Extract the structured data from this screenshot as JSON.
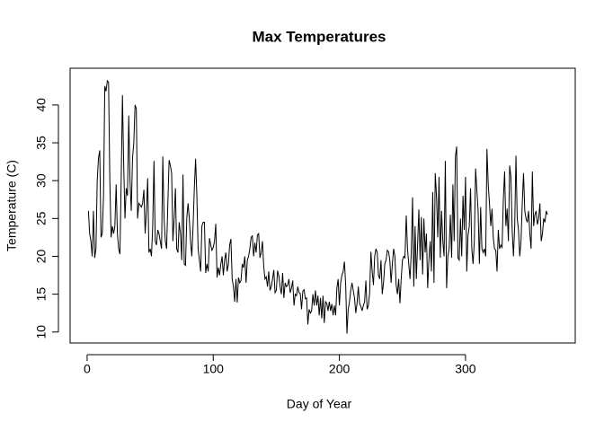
{
  "chart_data": {
    "type": "line",
    "title": "Max Temperatures",
    "xlabel": "Day of Year",
    "ylabel": "Temperature (C)",
    "color": "#000000",
    "xlim": [
      -13.5,
      387
    ],
    "ylim": [
      8.55,
      44.85
    ],
    "xticks": [
      0,
      100,
      200,
      300
    ],
    "yticks": [
      10,
      15,
      20,
      25,
      30,
      35,
      40
    ],
    "x": [
      1,
      2,
      3,
      4,
      5,
      6,
      7,
      8,
      9,
      10,
      11,
      12,
      13,
      14,
      15,
      16,
      17,
      18,
      19,
      20,
      21,
      22,
      23,
      24,
      25,
      26,
      27,
      28,
      29,
      30,
      31,
      32,
      33,
      34,
      35,
      36,
      37,
      38,
      39,
      40,
      41,
      42,
      43,
      44,
      45,
      46,
      47,
      48,
      49,
      50,
      51,
      52,
      53,
      54,
      55,
      56,
      57,
      58,
      59,
      60,
      61,
      62,
      63,
      64,
      65,
      66,
      67,
      68,
      69,
      70,
      71,
      72,
      73,
      74,
      75,
      76,
      77,
      78,
      79,
      80,
      81,
      82,
      83,
      84,
      85,
      86,
      87,
      88,
      89,
      90,
      91,
      92,
      93,
      94,
      95,
      96,
      97,
      98,
      99,
      100,
      101,
      102,
      103,
      104,
      105,
      106,
      107,
      108,
      109,
      110,
      111,
      112,
      113,
      114,
      115,
      116,
      117,
      118,
      119,
      120,
      121,
      122,
      123,
      124,
      125,
      126,
      127,
      128,
      129,
      130,
      131,
      132,
      133,
      134,
      135,
      136,
      137,
      138,
      139,
      140,
      141,
      142,
      143,
      144,
      145,
      146,
      147,
      148,
      149,
      150,
      151,
      152,
      153,
      154,
      155,
      156,
      157,
      158,
      159,
      160,
      161,
      162,
      163,
      164,
      165,
      166,
      167,
      168,
      169,
      170,
      171,
      172,
      173,
      174,
      175,
      176,
      177,
      178,
      179,
      180,
      181,
      182,
      183,
      184,
      185,
      186,
      187,
      188,
      189,
      190,
      191,
      192,
      193,
      194,
      195,
      196,
      197,
      198,
      199,
      200,
      201,
      202,
      203,
      204,
      205,
      206,
      207,
      208,
      209,
      210,
      211,
      212,
      213,
      214,
      215,
      216,
      217,
      218,
      219,
      220,
      221,
      222,
      223,
      224,
      225,
      226,
      227,
      228,
      229,
      230,
      231,
      232,
      233,
      234,
      235,
      236,
      237,
      238,
      239,
      240,
      241,
      242,
      243,
      244,
      245,
      246,
      247,
      248,
      249,
      250,
      251,
      252,
      253,
      254,
      255,
      256,
      257,
      258,
      259,
      260,
      261,
      262,
      263,
      264,
      265,
      266,
      267,
      268,
      269,
      270,
      271,
      272,
      273,
      274,
      275,
      276,
      277,
      278,
      279,
      280,
      281,
      282,
      283,
      284,
      285,
      286,
      287,
      288,
      289,
      290,
      291,
      292,
      293,
      294,
      295,
      296,
      297,
      298,
      299,
      300,
      301,
      302,
      303,
      304,
      305,
      306,
      307,
      308,
      309,
      310,
      311,
      312,
      313,
      314,
      315,
      316,
      317,
      318,
      319,
      320,
      321,
      322,
      323,
      324,
      325,
      326,
      327,
      328,
      329,
      330,
      331,
      332,
      333,
      334,
      335,
      336,
      337,
      338,
      339,
      340,
      341,
      342,
      343,
      344,
      345,
      346,
      347,
      348,
      349,
      350,
      351,
      352,
      353,
      354,
      355,
      356,
      357,
      358,
      359,
      360,
      361,
      362,
      363,
      364,
      365
    ],
    "values": [
      26,
      23,
      22,
      20,
      26,
      19.8,
      21,
      30,
      33,
      34,
      22.5,
      23,
      28,
      42.5,
      41.8,
      43.2,
      43,
      30,
      22.5,
      24,
      23,
      24,
      29.5,
      23,
      21,
      20.3,
      30,
      41.3,
      32,
      25,
      29,
      28,
      38.6,
      30,
      26,
      33,
      35,
      40,
      39.5,
      25,
      27,
      26.8,
      26.5,
      27,
      28.8,
      23,
      26,
      30.3,
      20.5,
      21,
      20,
      24,
      32.6,
      22,
      21.5,
      23.5,
      23,
      22,
      21,
      33.2,
      25,
      22,
      21,
      27,
      32.7,
      32,
      31,
      22,
      25,
      29,
      21,
      20.5,
      24.5,
      23,
      19.5,
      30.8,
      19,
      18.8,
      25,
      27,
      25,
      22,
      20,
      24,
      29,
      32.9,
      28,
      21,
      19.5,
      18,
      24,
      24.5,
      24.5,
      17.8,
      19,
      18,
      22.4,
      21.5,
      20.8,
      21.2,
      22,
      24.3,
      17.2,
      18.5,
      17.5,
      19,
      20,
      17.5,
      19.5,
      20.5,
      18,
      19,
      21.5,
      22.3,
      17,
      16,
      14,
      17,
      13.9,
      17.2,
      16.5,
      16.8,
      19,
      18.5,
      20,
      16.5,
      19.5,
      20,
      21,
      22.5,
      22.7,
      20,
      21.8,
      20.5,
      22.8,
      23,
      19.8,
      20.5,
      22,
      18.7,
      17,
      17.3,
      16,
      18,
      15.5,
      16,
      17,
      18.2,
      15.2,
      15.5,
      18.1,
      17.4,
      16,
      15,
      17.8,
      14.5,
      16.5,
      16,
      16.2,
      17,
      15.2,
      15.8,
      16.8,
      13.5,
      15,
      14.8,
      16,
      15.2,
      15.1,
      13,
      15.4,
      15.6,
      14.4,
      14.5,
      11,
      13,
      12.5,
      12.8,
      15,
      13.5,
      15.5,
      13.5,
      14.8,
      12.2,
      14.5,
      11.8,
      14.8,
      11.2,
      14,
      13.8,
      12.8,
      14,
      12.8,
      13.7,
      12.2,
      13.5,
      12.2,
      15.8,
      17,
      13.5,
      16.5,
      17.5,
      18,
      19.3,
      16.2,
      9.8,
      13,
      14,
      15.5,
      16.5,
      15.5,
      14.5,
      12.5,
      13.8,
      16,
      13.8,
      13.4,
      12.8,
      13.5,
      14,
      16.8,
      13,
      13.5,
      15.2,
      20.6,
      18,
      16.2,
      20,
      21,
      20.5,
      17.5,
      17,
      19.5,
      15,
      16.5,
      19,
      19.5,
      20.8,
      20.6,
      19.5,
      16.5,
      19,
      21,
      20,
      16.2,
      15,
      17,
      13.8,
      17,
      19.5,
      20,
      19.8,
      25.4,
      21,
      19,
      17,
      20.5,
      27.8,
      16,
      24,
      17,
      21.5,
      26.2,
      19.5,
      25.2,
      17.6,
      25,
      20.5,
      23,
      15.8,
      19.6,
      22,
      18,
      28.5,
      16.5,
      31,
      28,
      22.5,
      30.5,
      19.8,
      26,
      22,
      20,
      32.6,
      15.8,
      20,
      21,
      25.5,
      19.8,
      29.5,
      22,
      33.2,
      34.5,
      19.8,
      19.5,
      25,
      20,
      28,
      23.5,
      30.5,
      18,
      22.8,
      24,
      29,
      21,
      19,
      22,
      31.6,
      28.7,
      26,
      19,
      26.5,
      21,
      20.5,
      21,
      20,
      34.2,
      29.5,
      27,
      24,
      26.3,
      22.5,
      21,
      20.8,
      18,
      23.5,
      21,
      21.5,
      21.2,
      27.5,
      31.2,
      24,
      26.3,
      22,
      32,
      30.5,
      23.5,
      20,
      24,
      33.3,
      25,
      23.5,
      20,
      22,
      27,
      31,
      26,
      25,
      24.5,
      26,
      23,
      21,
      31.2,
      24,
      25.5,
      26,
      24.2,
      25,
      27,
      22,
      23,
      25,
      24.5,
      26,
      25.5
    ]
  }
}
